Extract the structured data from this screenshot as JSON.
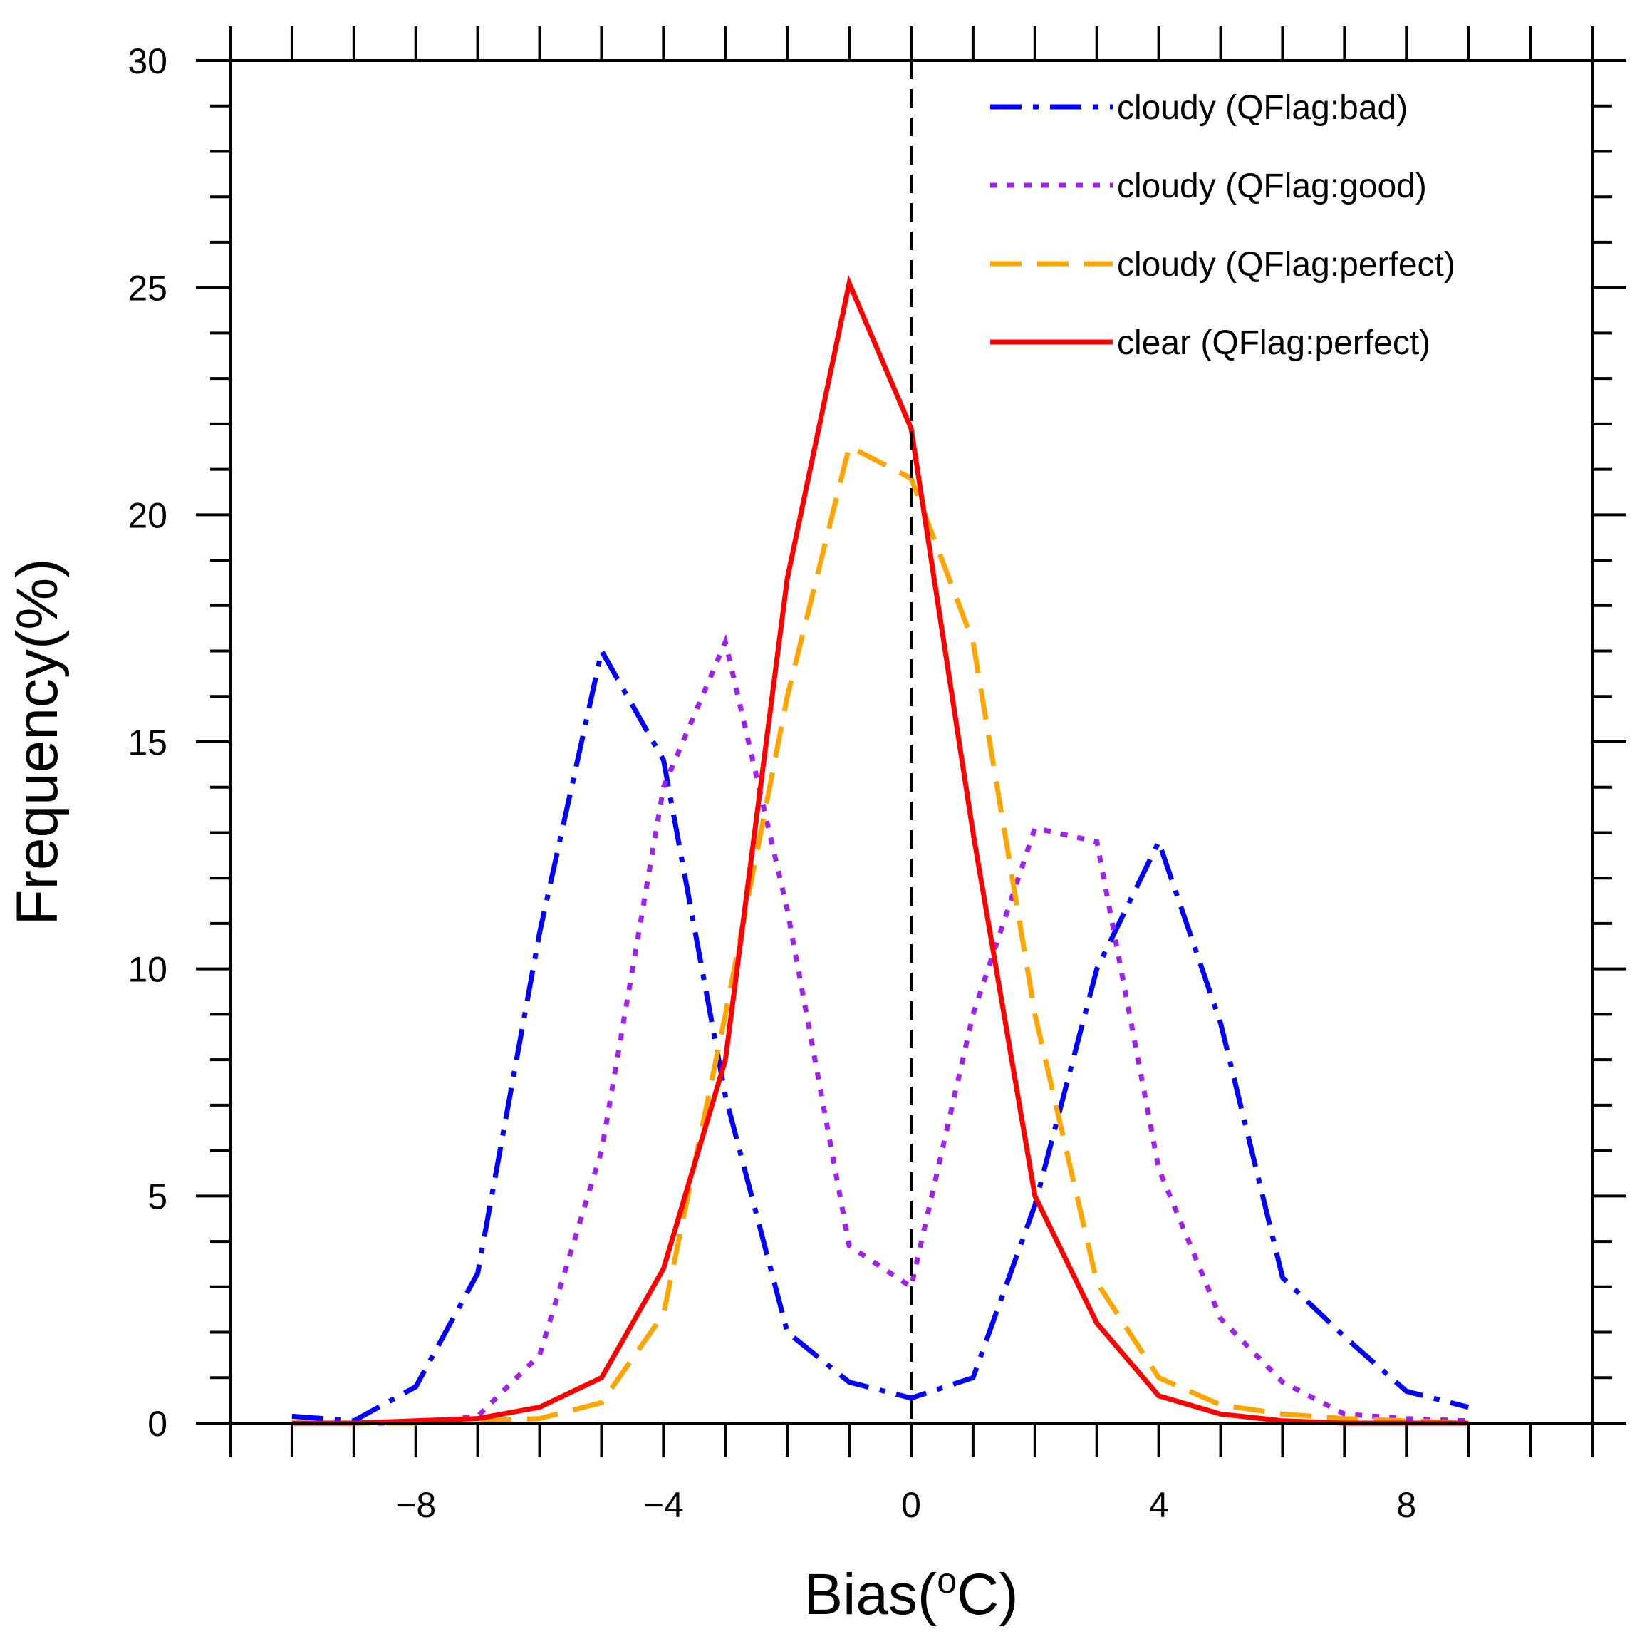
{
  "chart_data": {
    "type": "line",
    "title": "",
    "xlabel": "Bias(",
    "xlabel_superscript": "o",
    "xlabel_unit": "C)",
    "ylabel": "Frequency(%)",
    "xlim": [
      -11,
      11
    ],
    "ylim": [
      0,
      30
    ],
    "x_ticks": [
      -8,
      -4,
      0,
      4,
      8
    ],
    "x_tick_labels": [
      "−8",
      "−4",
      "0",
      "4",
      "8"
    ],
    "y_ticks": [
      0,
      5,
      10,
      15,
      20,
      25,
      30
    ],
    "y_tick_labels": [
      "0",
      "5",
      "10",
      "15",
      "20",
      "25",
      "30"
    ],
    "grid": false,
    "legend_position": "top-right",
    "reference_line_x": 0,
    "x": [
      -10,
      -9,
      -8,
      -7,
      -6,
      -5,
      -4,
      -3,
      -2,
      -1,
      0,
      1,
      2,
      3,
      4,
      5,
      6,
      7,
      8,
      9
    ],
    "series": [
      {
        "name": "cloudy (QFlag:bad)",
        "color": "#0000ff",
        "style": "dashdot",
        "values": [
          0.15,
          0.05,
          0.8,
          3.3,
          10.8,
          17.0,
          14.6,
          7.2,
          2.0,
          0.9,
          0.55,
          1.0,
          4.8,
          10.0,
          12.8,
          8.8,
          3.2,
          1.9,
          0.7,
          0.35
        ]
      },
      {
        "name": "cloudy (QFlag:good)",
        "color": "#a020f0",
        "style": "dotted",
        "values": [
          0.0,
          0.0,
          0.0,
          0.15,
          1.5,
          6.0,
          14.0,
          17.2,
          11.3,
          3.9,
          3.0,
          9.0,
          13.1,
          12.8,
          5.6,
          2.3,
          0.9,
          0.2,
          0.1,
          0.05
        ]
      },
      {
        "name": "cloudy (QFlag:perfect)",
        "color": "#ffa500",
        "style": "dashed",
        "values": [
          0.0,
          0.0,
          0.0,
          0.05,
          0.1,
          0.45,
          2.4,
          9.0,
          16.0,
          21.5,
          20.8,
          17.2,
          9.0,
          3.1,
          1.0,
          0.4,
          0.2,
          0.1,
          0.05,
          0.0
        ]
      },
      {
        "name": "clear (QFlag:perfect)",
        "color": "#ff0000",
        "style": "solid",
        "values": [
          0.0,
          0.0,
          0.05,
          0.1,
          0.35,
          1.0,
          3.4,
          8.0,
          18.6,
          25.1,
          21.9,
          13.0,
          5.0,
          2.2,
          0.6,
          0.2,
          0.05,
          0.0,
          0.0,
          0.0
        ]
      }
    ]
  }
}
